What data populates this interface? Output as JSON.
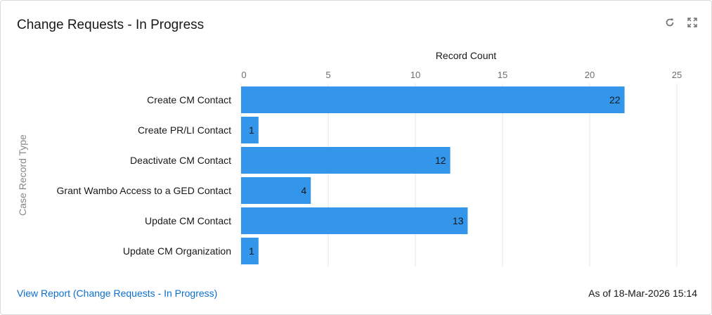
{
  "card": {
    "title": "Change Requests - In Progress",
    "refresh_icon": "refresh-icon",
    "expand_icon": "expand-icon"
  },
  "chart_data": {
    "type": "bar",
    "orientation": "horizontal",
    "categories": [
      "Create CM Contact",
      "Create PR/LI Contact",
      "Deactivate CM Contact",
      "Grant Wambo Access to a GED Contact",
      "Update CM Contact",
      "Update CM Organization"
    ],
    "values": [
      22,
      1,
      12,
      4,
      13,
      1
    ],
    "xlabel": "Record Count",
    "ylabel": "Case Record Type",
    "xlim": [
      0,
      25
    ],
    "xticks": [
      0,
      5,
      10,
      15,
      20,
      25
    ],
    "x_axis_position": "top",
    "grid": true,
    "data_labels": true,
    "bar_color": "#3496ea"
  },
  "footer": {
    "link": "View Report (Change Requests - In Progress)",
    "as_of": "As of 18-Mar-2026 15:14"
  }
}
